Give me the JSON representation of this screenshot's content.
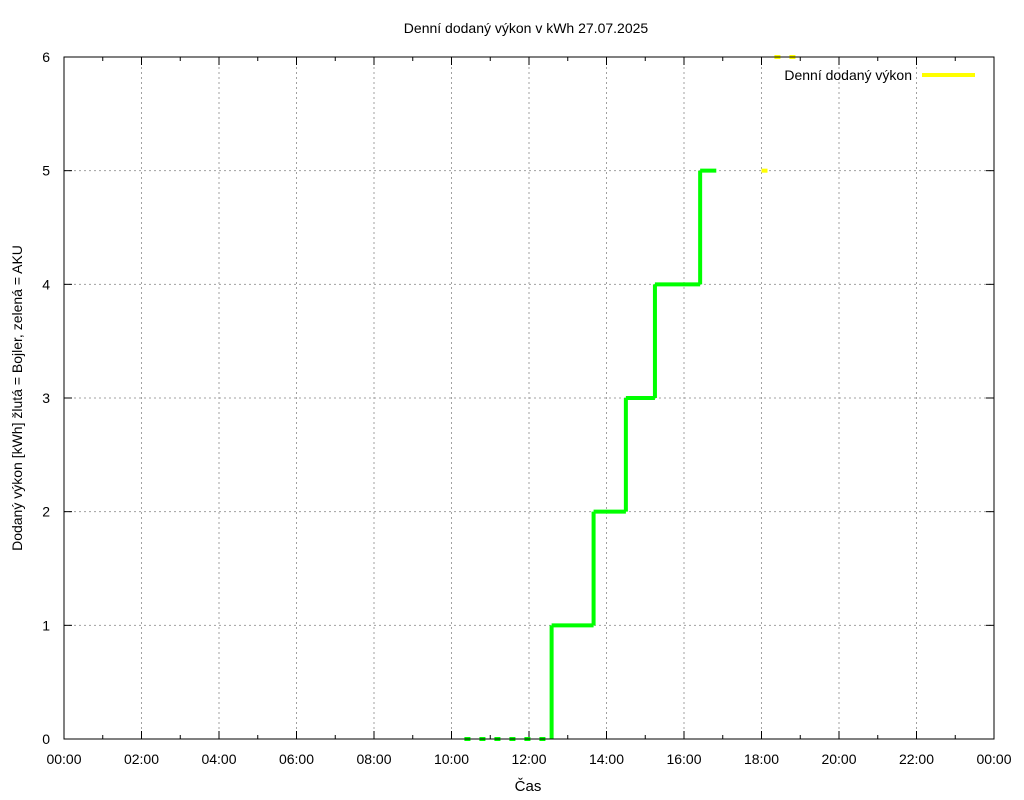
{
  "chart_data": {
    "type": "line",
    "title": "Denní dodaný výkon v kWh 27.07.2025",
    "xlabel": "Čas",
    "ylabel": "Dodaný výkon [kWh]  žlutá = Bojler, zelená = AKU",
    "xlim": [
      "00:00",
      "24:00"
    ],
    "ylim": [
      0,
      6
    ],
    "x_ticks": [
      "00:00",
      "02:00",
      "04:00",
      "06:00",
      "08:00",
      "10:00",
      "12:00",
      "14:00",
      "16:00",
      "18:00",
      "20:00",
      "22:00",
      "00:00"
    ],
    "y_ticks": [
      "0",
      "1",
      "2",
      "3",
      "4",
      "5",
      "6"
    ],
    "grid": true,
    "legend_position": "top-right",
    "colors": {
      "bojler": "#ffff00",
      "aku": "#00ff00",
      "grid": "#a0a0a0"
    },
    "series": [
      {
        "name": "Denní dodaný výkon",
        "color": "#ffff00",
        "segments": [
          {
            "x": [
              "18:00",
              "18:15"
            ],
            "y": 5,
            "dotted": true
          },
          {
            "x": [
              "18:20",
              "19:05"
            ],
            "y": 6,
            "dotted": true
          }
        ]
      },
      {
        "color": "#00ff00",
        "segments": [
          {
            "x": [
              "10:20",
              "12:35"
            ],
            "y": 0,
            "dotted": true
          },
          {
            "x": [
              "12:35",
              "13:40"
            ],
            "y": 1
          },
          {
            "x": [
              "13:40",
              "14:30"
            ],
            "y": 2
          },
          {
            "x": [
              "14:30",
              "15:15"
            ],
            "y": 3
          },
          {
            "x": [
              "15:15",
              "16:25"
            ],
            "y": 4
          },
          {
            "x": [
              "16:25",
              "16:50"
            ],
            "y": 5
          }
        ],
        "steps": [
          {
            "x": "12:35",
            "from": 0,
            "to": 1
          },
          {
            "x": "13:40",
            "from": 1,
            "to": 2
          },
          {
            "x": "14:30",
            "from": 2,
            "to": 3
          },
          {
            "x": "15:15",
            "from": 3,
            "to": 4
          },
          {
            "x": "16:25",
            "from": 4,
            "to": 5
          }
        ]
      }
    ]
  }
}
